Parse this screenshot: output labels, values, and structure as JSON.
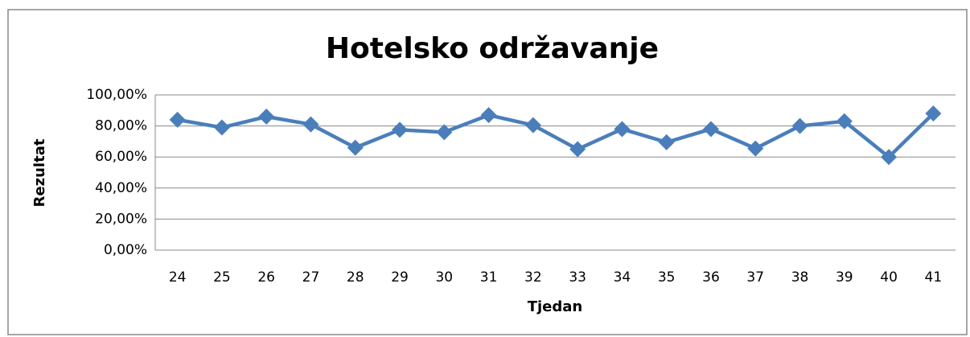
{
  "chart_data": {
    "type": "line",
    "title": "Hotelsko održavanje",
    "x_label": "Tjedan",
    "y_label": "Rezultat",
    "categories": [
      "24",
      "25",
      "26",
      "27",
      "28",
      "29",
      "30",
      "31",
      "32",
      "33",
      "34",
      "35",
      "36",
      "37",
      "38",
      "39",
      "40",
      "41"
    ],
    "series": [
      {
        "name": "Rezultat",
        "color": "#4a7ebb",
        "values": [
          84,
          79,
          86,
          81,
          66,
          77.5,
          76,
          87,
          80.5,
          65,
          78,
          69.5,
          78,
          65.5,
          80,
          83,
          60,
          88
        ]
      }
    ],
    "ylim": [
      0,
      100
    ],
    "yticks": [
      {
        "value": 0,
        "label": "0,00%"
      },
      {
        "value": 20,
        "label": "20,00%"
      },
      {
        "value": 40,
        "label": "40,00%"
      },
      {
        "value": 60,
        "label": "60,00%"
      },
      {
        "value": 80,
        "label": "80,00%"
      },
      {
        "value": 100,
        "label": "100,00%"
      }
    ],
    "grid": true
  }
}
